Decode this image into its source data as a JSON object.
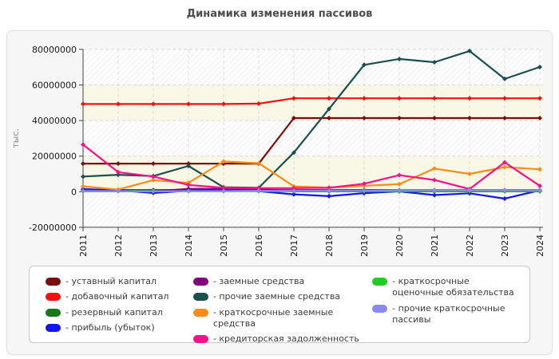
{
  "title": "Динамика изменения пассивов",
  "y_axis_unit": "тыс.",
  "legend": {
    "dash": "-"
  },
  "colors": {
    "title": "#4d4d4d",
    "panel_bg": "#f6f6f6",
    "panel_border": "#e0e0e0",
    "plot_bg": "#fdfdfd",
    "hatch": "#e8e8e8",
    "band_cream": "#f8f6e3",
    "grid": "#d9d9d9",
    "axis": "#444444",
    "tick_text": "#1a1a1a",
    "unit_text": "#8a8a8a",
    "legend_bg": "#ffffff",
    "legend_border": "#c9c9c9",
    "legend_text": "#3c3c3c"
  },
  "chart_data": {
    "type": "line",
    "title": "Динамика изменения пассивов",
    "xlabel": "",
    "ylabel": "тыс.",
    "x": [
      "2011",
      "2012",
      "2013",
      "2014",
      "2015",
      "2016",
      "2017",
      "2018",
      "2019",
      "2020",
      "2021",
      "2022",
      "2023",
      "2024"
    ],
    "y_ticks": [
      80000000,
      60000000,
      40000000,
      20000000,
      0,
      -20000000
    ],
    "ylim": [
      -20000000,
      80000000
    ],
    "grid": "dashed",
    "background": "alternating cream/hatched horizontal bands",
    "legend_position": "bottom",
    "marker": "diamond",
    "series": [
      {
        "name": "уставный капитал",
        "color": "#7d0c0c",
        "values": [
          15800000,
          15800000,
          15800000,
          15800000,
          15800000,
          15800000,
          41400000,
          41400000,
          41400000,
          41400000,
          41400000,
          41400000,
          41400000,
          41400000
        ]
      },
      {
        "name": "добавочный капитал",
        "color": "#f50f0f",
        "values": [
          49300000,
          49300000,
          49300000,
          49300000,
          49300000,
          49500000,
          52500000,
          52500000,
          52500000,
          52500000,
          52500000,
          52500000,
          52500000,
          52500000
        ]
      },
      {
        "name": "резервный капитал",
        "color": "#157a15",
        "values": [
          1000000,
          1000000,
          1000000,
          1000000,
          1000000,
          1000000,
          1000000,
          1000000,
          1000000,
          1000000,
          1000000,
          1000000,
          1000000,
          1000000
        ]
      },
      {
        "name": "прибыль (убыток)",
        "color": "#1414f0",
        "values": [
          1500000,
          800000,
          -700000,
          500000,
          700000,
          300000,
          -1500000,
          -2500000,
          -800000,
          200000,
          -1900000,
          -900000,
          -3900000,
          800000
        ]
      },
      {
        "name": "заемные средства",
        "color": "#800080",
        "values": [
          300000,
          300000,
          200000,
          1600000,
          1600000,
          1500000,
          200000,
          200000,
          200000,
          200000,
          200000,
          200000,
          200000,
          200000
        ]
      },
      {
        "name": "прочие заемные средства",
        "color": "#1c4f4f",
        "values": [
          8500000,
          9500000,
          8800000,
          14500000,
          2500000,
          2200000,
          22000000,
          46500000,
          71300000,
          74600000,
          72800000,
          79100000,
          63400000,
          70100000
        ]
      },
      {
        "name": "краткосрочные заемные средства",
        "color": "#fb8c17",
        "values": [
          3000000,
          1200000,
          6500000,
          5000000,
          17000000,
          16000000,
          3000000,
          2300000,
          3300000,
          4200000,
          13000000,
          10000000,
          13800000,
          12600000
        ]
      },
      {
        "name": "кредиторская задолженность",
        "color": "#f5128c",
        "values": [
          26500000,
          11000000,
          8500000,
          3800000,
          2200000,
          2000000,
          2000000,
          2200000,
          4500000,
          9300000,
          6600000,
          1500000,
          16500000,
          3300000
        ]
      },
      {
        "name": "краткосрочные оценочные обязательства",
        "color": "#22cc22",
        "values": [
          300000,
          300000,
          300000,
          300000,
          300000,
          300000,
          300000,
          300000,
          300000,
          300000,
          300000,
          300000,
          300000,
          300000
        ]
      },
      {
        "name": "прочие краткосрочные пассивы",
        "color": "#8a8aee",
        "values": [
          400000,
          300000,
          200000,
          300000,
          300000,
          500000,
          500000,
          500000,
          500000,
          900000,
          900000,
          900000,
          900000,
          900000
        ]
      }
    ],
    "legend_columns": [
      [
        0,
        1,
        2,
        3
      ],
      [
        4,
        5,
        6,
        7
      ],
      [
        8,
        9
      ]
    ]
  }
}
